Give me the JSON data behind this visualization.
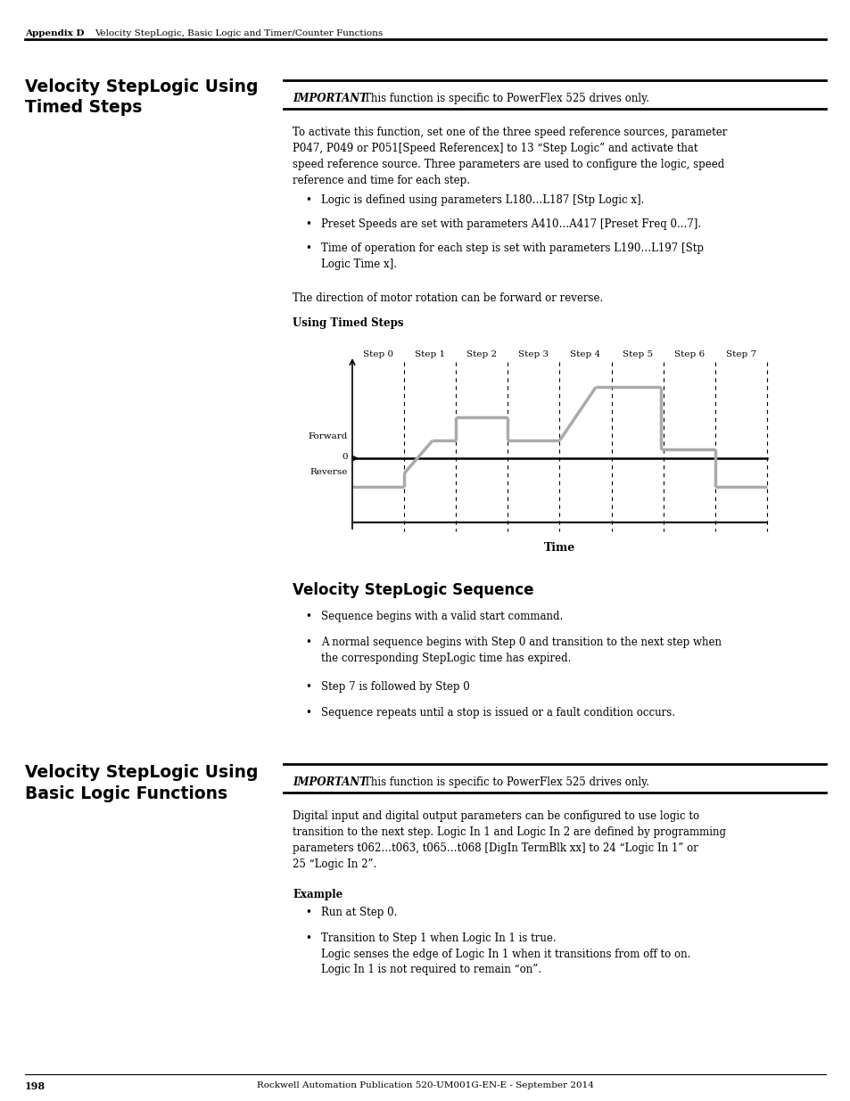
{
  "page_background": "#ffffff",
  "header_text_left": "Appendix D",
  "header_text_right": "Velocity StepLogic, Basic Logic and Timer/Counter Functions",
  "important_label": "IMPORTANT",
  "important_text": "This function is specific to PowerFlex 525 drives only.",
  "section1_title": "Velocity StepLogic Using\nTimed Steps",
  "body1_text": "To activate this function, set one of the three speed reference sources, parameter\nP047, P049 or P051[Speed Referencex] to 13 “Step Logic” and activate that\nspeed reference source. Three parameters are used to configure the logic, speed\nreference and time for each step.",
  "bullet1_items": [
    "Logic is defined using parameters L180…L187 [Stp Logic x].",
    "Preset Speeds are set with parameters A410…A417 [Preset Freq 0...7].",
    "Time of operation for each step is set with parameters L190…L197 [Stp\nLogic Time x]."
  ],
  "body2_text": "The direction of motor rotation can be forward or reverse.",
  "diagram_title": "Using Timed Steps",
  "step_labels": [
    "Step 0",
    "Step 1",
    "Step 2",
    "Step 3",
    "Step 4",
    "Step 5",
    "Step 6",
    "Step 7"
  ],
  "waveform_color": "#aaaaaa",
  "waveform_lw": 2.5,
  "time_label": "Time",
  "section2_title": "Velocity StepLogic Sequence",
  "bullet2_items": [
    "Sequence begins with a valid start command.",
    "A normal sequence begins with Step 0 and transition to the next step when\nthe corresponding StepLogic time has expired.",
    "Step 7 is followed by Step 0",
    "Sequence repeats until a stop is issued or a fault condition occurs."
  ],
  "section3_title": "Velocity StepLogic Using\nBasic Logic Functions",
  "body3_text": "Digital input and digital output parameters can be configured to use logic to\ntransition to the next step. Logic In 1 and Logic In 2 are defined by programming\nparameters t062…t063, t065…t068 [DigIn TermBlk xx] to 24 “Logic In 1” or\n25 “Logic In 2”.",
  "example_label": "Example",
  "bullet3_items": [
    "Run at Step 0.",
    "Transition to Step 1 when Logic In 1 is true.\nLogic senses the edge of Logic In 1 when it transitions from off to on.\nLogic In 1 is not required to remain “on”."
  ],
  "footer_page": "198",
  "footer_text": "Rockwell Automation Publication 520-UM001G-EN-E - September 2014"
}
